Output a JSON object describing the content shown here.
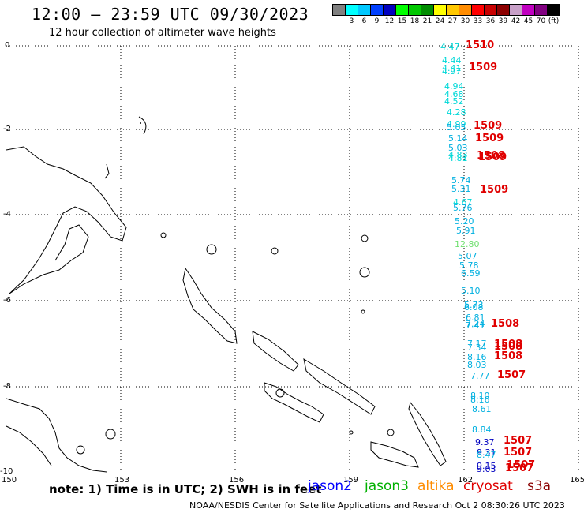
{
  "header": {
    "title": "12:00 – 23:59 UTC 09/30/2023",
    "subtitle": "12 hour collection of altimeter wave heights"
  },
  "legend": {
    "colors": [
      "#808080",
      "#00ffff",
      "#00c8ff",
      "#0040ff",
      "#0000c0",
      "#00ff00",
      "#00c800",
      "#008c00",
      "#ffff00",
      "#ffc800",
      "#ff8c00",
      "#ff0000",
      "#c80000",
      "#8c0000",
      "#c8a0c8",
      "#c000c0",
      "#800080",
      "#000000"
    ],
    "labels": [
      "",
      "3",
      "6",
      "9",
      "12",
      "15",
      "18",
      "21",
      "24",
      "27",
      "30",
      "33",
      "36",
      "39",
      "42",
      "45",
      "70",
      "(ft)"
    ]
  },
  "axes": {
    "lon_labels": [
      "150",
      "153",
      "156",
      "159",
      "162",
      "165"
    ],
    "lat_labels": [
      "0",
      "-2",
      "-4",
      "-6",
      "-8",
      "-10"
    ]
  },
  "observations": [
    {
      "v": "4.47",
      "c": "#00d8d8"
    },
    {
      "v": "4.44",
      "c": "#00d8d8"
    },
    {
      "v": "4.41",
      "c": "#00d8d8"
    },
    {
      "v": "4.97",
      "c": "#00d8d8"
    },
    {
      "v": "4.94",
      "c": "#00d8d8"
    },
    {
      "v": "4.68",
      "c": "#00d8d8"
    },
    {
      "v": "4.52",
      "c": "#00d8d8"
    },
    {
      "v": "4.28",
      "c": "#00d8d8"
    },
    {
      "v": "4.99",
      "c": "#00d8d8"
    },
    {
      "v": "5.05",
      "c": "#00b0e0"
    },
    {
      "v": "5.14",
      "c": "#00b0e0"
    },
    {
      "v": "5.03",
      "c": "#00b0e0"
    },
    {
      "v": "4.83",
      "c": "#00d8d8"
    },
    {
      "v": "4.81",
      "c": "#00d8d8"
    },
    {
      "v": "5.74",
      "c": "#00b0e0"
    },
    {
      "v": "5.31",
      "c": "#00b0e0"
    },
    {
      "v": "4.67",
      "c": "#00d8d8"
    },
    {
      "v": "5.76",
      "c": "#00b0e0"
    },
    {
      "v": "5.20",
      "c": "#00b0e0"
    },
    {
      "v": "5.91",
      "c": "#00b0e0"
    },
    {
      "v": "12.80",
      "c": "#70e070"
    },
    {
      "v": "5.07",
      "c": "#00b0e0"
    },
    {
      "v": "5.78",
      "c": "#00b0e0"
    },
    {
      "v": "6.59",
      "c": "#00b0e0"
    },
    {
      "v": "5.10",
      "c": "#00b0e0"
    },
    {
      "v": "5.73",
      "c": "#00b0e0"
    },
    {
      "v": "6.08",
      "c": "#00b0e0"
    },
    {
      "v": "6.81",
      "c": "#00b0e0"
    },
    {
      "v": "7.24",
      "c": "#00b0e0"
    },
    {
      "v": "7.41",
      "c": "#00b0e0"
    },
    {
      "v": "7.17",
      "c": "#00b0e0"
    },
    {
      "v": "7.34",
      "c": "#00b0e0"
    },
    {
      "v": "8.16",
      "c": "#00b0e0"
    },
    {
      "v": "8.03",
      "c": "#00b0e0"
    },
    {
      "v": "7.77",
      "c": "#00b0e0"
    },
    {
      "v": "8.10",
      "c": "#00b0e0"
    },
    {
      "v": "8.16",
      "c": "#00b0e0"
    },
    {
      "v": "8.61",
      "c": "#00b0e0"
    },
    {
      "v": "8.84",
      "c": "#00b0e0"
    },
    {
      "v": "9.37",
      "c": "#0000c0"
    },
    {
      "v": "9.31",
      "c": "#0000c0"
    },
    {
      "v": "8.47",
      "c": "#00b0e0"
    },
    {
      "v": "9.15",
      "c": "#0000c0"
    },
    {
      "v": "9.03",
      "c": "#0000c0"
    }
  ],
  "passes": [
    "1510",
    "1509",
    "1509",
    "1509",
    "1508",
    "1509",
    "1509",
    "1508",
    "1508",
    "1508",
    "1508",
    "1507",
    "1507",
    "1507",
    "1507",
    "1507"
  ],
  "footer": {
    "note": "note:  1) Time is in UTC;  2) SWH is in feet",
    "satellites": [
      {
        "name": "jason2",
        "color": "#0000ff"
      },
      {
        "name": "jason3",
        "color": "#00b000"
      },
      {
        "name": "altika",
        "color": "#ff8c00"
      },
      {
        "name": "cryosat",
        "color": "#e00000"
      },
      {
        "name": "s3a",
        "color": "#8b0000"
      }
    ],
    "credit": "NOAA/NESDIS Center for Satellite Applications and Research    Oct  2 08:30:26 UTC 2023"
  }
}
